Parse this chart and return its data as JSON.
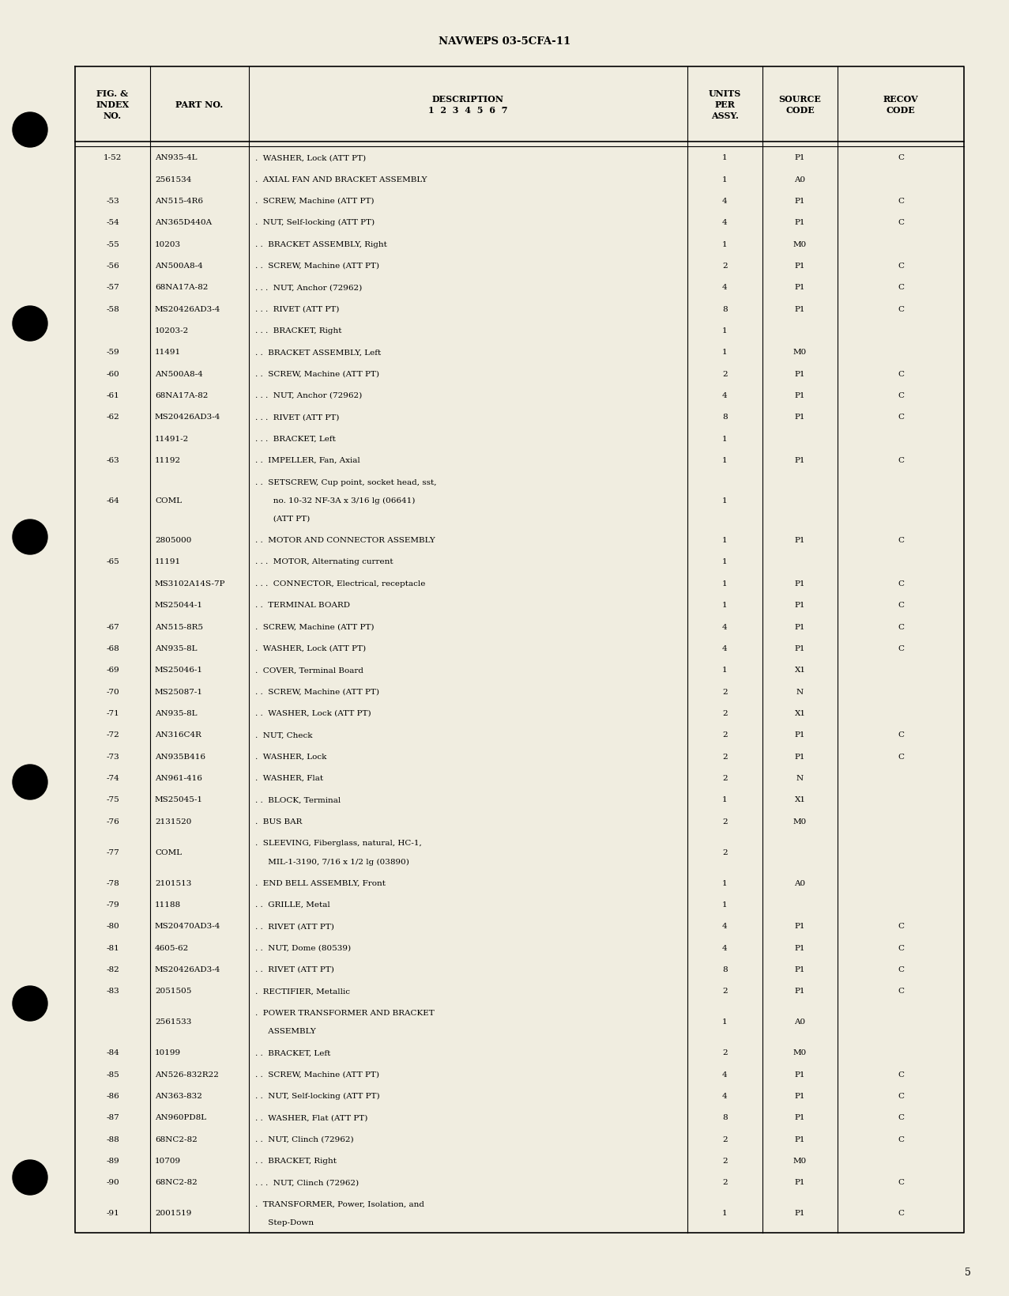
{
  "header_text": "NAVWEPS 03-5CFA-11",
  "page_number": "5",
  "bg_color": "#f0ede0",
  "rows": [
    {
      "fig": "1-52",
      "part": "AN935-4L",
      "dots": ".",
      "desc": "WASHER, Lock (ATT PT)",
      "units": "1",
      "source": "P1",
      "recov": "C"
    },
    {
      "fig": "",
      "part": "2561534",
      "dots": ".",
      "desc": "AXIAL FAN AND BRACKET ASSEMBLY",
      "units": "1",
      "source": "A0",
      "recov": ""
    },
    {
      "fig": "-53",
      "part": "AN515-4R6",
      "dots": ".",
      "desc": "SCREW, Machine (ATT PT)",
      "units": "4",
      "source": "P1",
      "recov": "C"
    },
    {
      "fig": "-54",
      "part": "AN365D440A",
      "dots": ".",
      "desc": "NUT, Self-locking (ATT PT)",
      "units": "4",
      "source": "P1",
      "recov": "C"
    },
    {
      "fig": "-55",
      "part": "10203",
      "dots": ". .",
      "desc": "BRACKET ASSEMBLY, Right",
      "units": "1",
      "source": "M0",
      "recov": ""
    },
    {
      "fig": "-56",
      "part": "AN500A8-4",
      "dots": ". .",
      "desc": "SCREW, Machine (ATT PT)",
      "units": "2",
      "source": "P1",
      "recov": "C"
    },
    {
      "fig": "-57",
      "part": "68NA17A-82",
      "dots": ". . .",
      "desc": "NUT, Anchor (72962)",
      "units": "4",
      "source": "P1",
      "recov": "C"
    },
    {
      "fig": "-58",
      "part": "MS20426AD3-4",
      "dots": ". . .",
      "desc": "RIVET (ATT PT)",
      "units": "8",
      "source": "P1",
      "recov": "C"
    },
    {
      "fig": "",
      "part": "10203-2",
      "dots": ". . .",
      "desc": "BRACKET, Right",
      "units": "1",
      "source": "",
      "recov": ""
    },
    {
      "fig": "-59",
      "part": "11491",
      "dots": ". .",
      "desc": "BRACKET ASSEMBLY, Left",
      "units": "1",
      "source": "M0",
      "recov": ""
    },
    {
      "fig": "-60",
      "part": "AN500A8-4",
      "dots": ". .",
      "desc": "SCREW, Machine (ATT PT)",
      "units": "2",
      "source": "P1",
      "recov": "C"
    },
    {
      "fig": "-61",
      "part": "68NA17A-82",
      "dots": ". . .",
      "desc": "NUT, Anchor (72962)",
      "units": "4",
      "source": "P1",
      "recov": "C"
    },
    {
      "fig": "-62",
      "part": "MS20426AD3-4",
      "dots": ". . .",
      "desc": "RIVET (ATT PT)",
      "units": "8",
      "source": "P1",
      "recov": "C"
    },
    {
      "fig": "",
      "part": "11491-2",
      "dots": ". . .",
      "desc": "BRACKET, Left",
      "units": "1",
      "source": "",
      "recov": ""
    },
    {
      "fig": "-63",
      "part": "11192",
      "dots": ". .",
      "desc": "IMPELLER, Fan, Axial",
      "units": "1",
      "source": "P1",
      "recov": "C"
    },
    {
      "fig": "-64",
      "part": "COML",
      "dots": ". .",
      "desc": "SETSCREW, Cup point, socket head, sst,\nno. 10-32 NF-3A x 3/16 lg (06641)\n(ATT PT)",
      "units": "1",
      "source": "",
      "recov": ""
    },
    {
      "fig": "",
      "part": "2805000",
      "dots": ". .",
      "desc": "MOTOR AND CONNECTOR ASSEMBLY",
      "units": "1",
      "source": "P1",
      "recov": "C"
    },
    {
      "fig": "-65",
      "part": "11191",
      "dots": ". . .",
      "desc": "MOTOR, Alternating current",
      "units": "1",
      "source": "",
      "recov": ""
    },
    {
      "fig": "",
      "part": "MS3102A14S-7P",
      "dots": ". . .",
      "desc": "CONNECTOR, Electrical, receptacle",
      "units": "1",
      "source": "P1",
      "recov": "C"
    },
    {
      "fig": "",
      "part": "MS25044-1",
      "dots": ". .",
      "desc": "TERMINAL BOARD",
      "units": "1",
      "source": "P1",
      "recov": "C"
    },
    {
      "fig": "-67",
      "part": "AN515-8R5",
      "dots": ".",
      "desc": "SCREW, Machine (ATT PT)",
      "units": "4",
      "source": "P1",
      "recov": "C"
    },
    {
      "fig": "-68",
      "part": "AN935-8L",
      "dots": ".",
      "desc": "WASHER, Lock (ATT PT)",
      "units": "4",
      "source": "P1",
      "recov": "C"
    },
    {
      "fig": "-69",
      "part": "MS25046-1",
      "dots": ".",
      "desc": "COVER, Terminal Board",
      "units": "1",
      "source": "X1",
      "recov": ""
    },
    {
      "fig": "-70",
      "part": "MS25087-1",
      "dots": ". .",
      "desc": "SCREW, Machine (ATT PT)",
      "units": "2",
      "source": "N",
      "recov": ""
    },
    {
      "fig": "-71",
      "part": "AN935-8L",
      "dots": ". .",
      "desc": "WASHER, Lock (ATT PT)",
      "units": "2",
      "source": "X1",
      "recov": ""
    },
    {
      "fig": "-72",
      "part": "AN316C4R",
      "dots": ".",
      "desc": "NUT, Check",
      "units": "2",
      "source": "P1",
      "recov": "C"
    },
    {
      "fig": "-73",
      "part": "AN935B416",
      "dots": ".",
      "desc": "WASHER, Lock",
      "units": "2",
      "source": "P1",
      "recov": "C"
    },
    {
      "fig": "-74",
      "part": "AN961-416",
      "dots": ".",
      "desc": "WASHER, Flat",
      "units": "2",
      "source": "N",
      "recov": ""
    },
    {
      "fig": "-75",
      "part": "MS25045-1",
      "dots": ". .",
      "desc": "BLOCK, Terminal",
      "units": "1",
      "source": "X1",
      "recov": ""
    },
    {
      "fig": "-76",
      "part": "2131520",
      "dots": ".",
      "desc": "BUS BAR",
      "units": "2",
      "source": "M0",
      "recov": ""
    },
    {
      "fig": "-77",
      "part": "COML",
      "dots": ".",
      "desc": "SLEEVING, Fiberglass, natural, HC-1,\nMIL-1-3190, 7/16 x 1/2 lg (03890)",
      "units": "2",
      "source": "",
      "recov": ""
    },
    {
      "fig": "-78",
      "part": "2101513",
      "dots": ".",
      "desc": "END BELL ASSEMBLY, Front",
      "units": "1",
      "source": "A0",
      "recov": ""
    },
    {
      "fig": "-79",
      "part": "11188",
      "dots": ". .",
      "desc": "GRILLE, Metal",
      "units": "1",
      "source": "",
      "recov": ""
    },
    {
      "fig": "-80",
      "part": "MS20470AD3-4",
      "dots": ". .",
      "desc": "RIVET (ATT PT)",
      "units": "4",
      "source": "P1",
      "recov": "C"
    },
    {
      "fig": "-81",
      "part": "4605-62",
      "dots": ". .",
      "desc": "NUT, Dome (80539)",
      "units": "4",
      "source": "P1",
      "recov": "C"
    },
    {
      "fig": "-82",
      "part": "MS20426AD3-4",
      "dots": ". .",
      "desc": "RIVET (ATT PT)",
      "units": "8",
      "source": "P1",
      "recov": "C"
    },
    {
      "fig": "-83",
      "part": "2051505",
      "dots": ".",
      "desc": "RECTIFIER, Metallic",
      "units": "2",
      "source": "P1",
      "recov": "C"
    },
    {
      "fig": "",
      "part": "2561533",
      "dots": ".",
      "desc": "POWER TRANSFORMER AND BRACKET\nASSEMBLY",
      "units": "1",
      "source": "A0",
      "recov": ""
    },
    {
      "fig": "-84",
      "part": "10199",
      "dots": ". .",
      "desc": "BRACKET, Left",
      "units": "2",
      "source": "M0",
      "recov": ""
    },
    {
      "fig": "-85",
      "part": "AN526-832R22",
      "dots": ". .",
      "desc": "SCREW, Machine (ATT PT)",
      "units": "4",
      "source": "P1",
      "recov": "C"
    },
    {
      "fig": "-86",
      "part": "AN363-832",
      "dots": ". .",
      "desc": "NUT, Self-locking (ATT PT)",
      "units": "4",
      "source": "P1",
      "recov": "C"
    },
    {
      "fig": "-87",
      "part": "AN960PD8L",
      "dots": ". .",
      "desc": "WASHER, Flat (ATT PT)",
      "units": "8",
      "source": "P1",
      "recov": "C"
    },
    {
      "fig": "-88",
      "part": "68NC2-82",
      "dots": ". .",
      "desc": "NUT, Clinch (72962)",
      "units": "2",
      "source": "P1",
      "recov": "C"
    },
    {
      "fig": "-89",
      "part": "10709",
      "dots": ". .",
      "desc": "BRACKET, Right",
      "units": "2",
      "source": "M0",
      "recov": ""
    },
    {
      "fig": "-90",
      "part": "68NC2-82",
      "dots": ". . .",
      "desc": "NUT, Clinch (72962)",
      "units": "2",
      "source": "P1",
      "recov": "C"
    },
    {
      "fig": "-91",
      "part": "2001519",
      "dots": ".",
      "desc": "TRANSFORMER, Power, Isolation, and\nStep-Down",
      "units": "1",
      "source": "P1",
      "recov": "C"
    }
  ]
}
